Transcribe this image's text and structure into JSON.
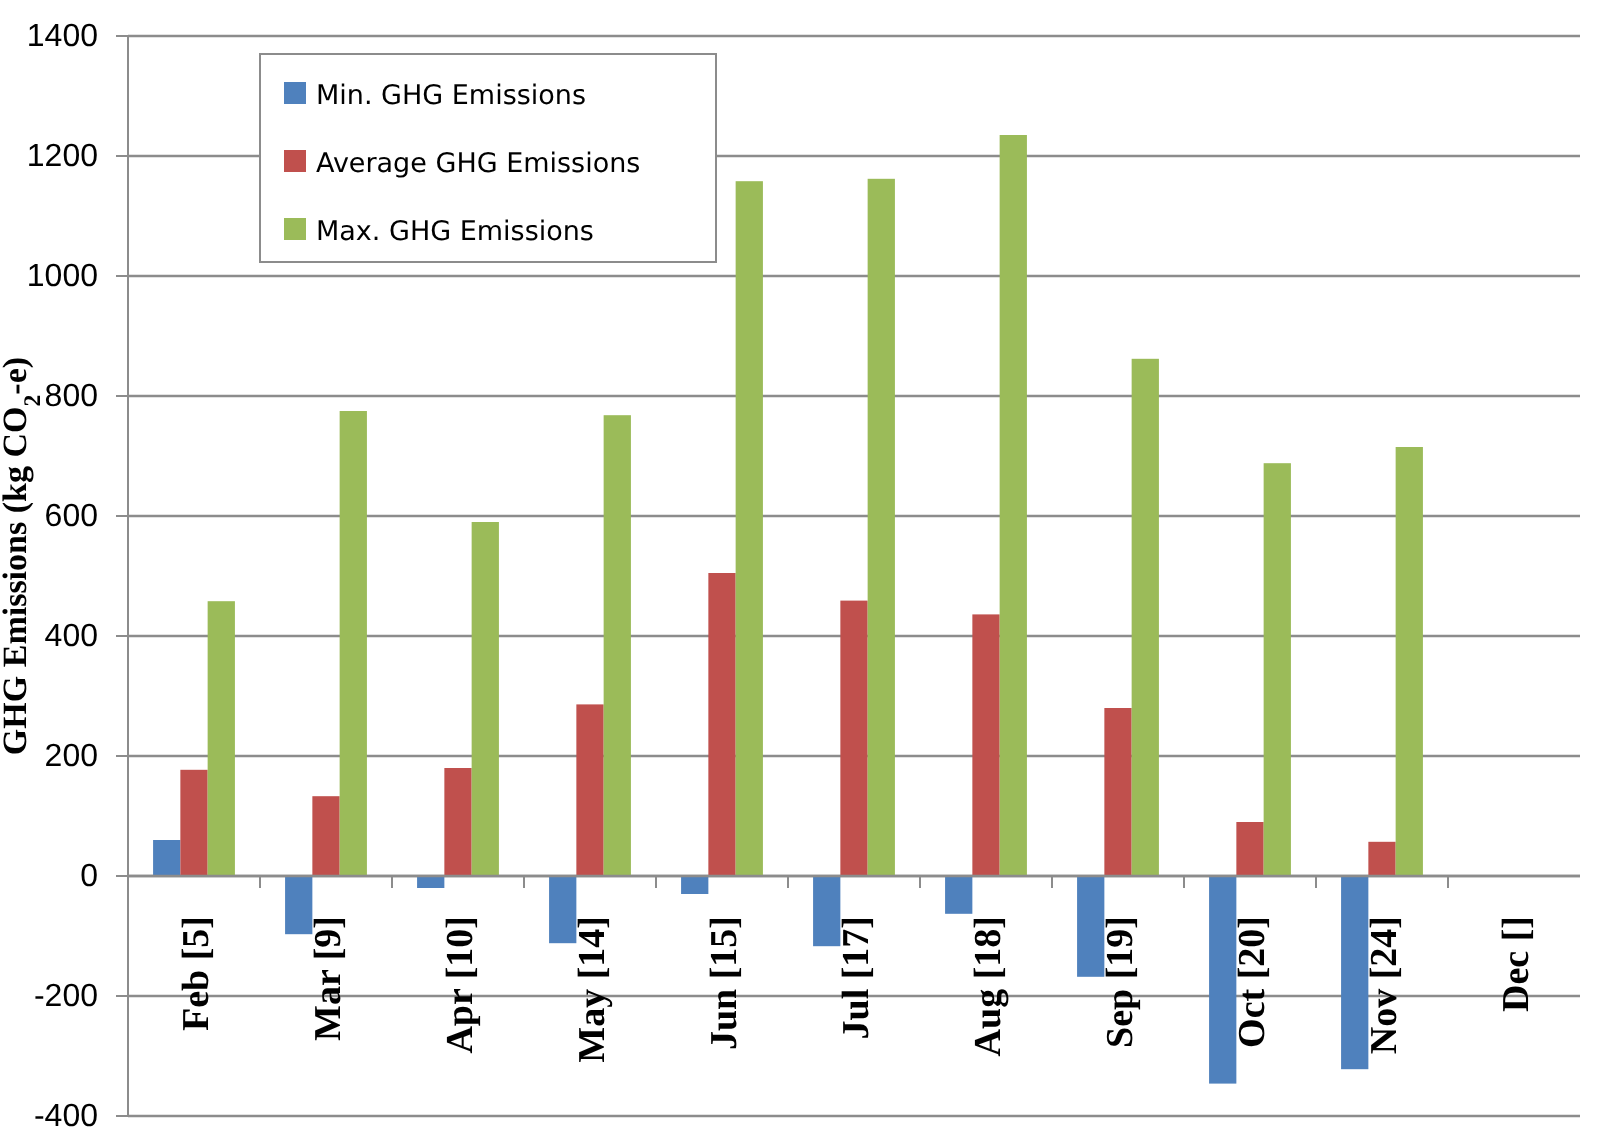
{
  "chart_data": {
    "type": "bar",
    "ylabel": "GHG Emissions (kg CO$_{2}$-e)",
    "categories": [
      "Feb [5]",
      "Mar [9]",
      "Apr [10]",
      "May [14]",
      "Jun [15]",
      "Jul [17]",
      "Aug [18]",
      "Sep [19]",
      "Oct [20]",
      "Nov [24]",
      "Dec []"
    ],
    "series": [
      {
        "name": "Min. GHG Emissions",
        "color": "#4f81bd",
        "values": [
          60,
          -97,
          -20,
          -112,
          -30,
          -117,
          -63,
          -168,
          -346,
          -322,
          null
        ]
      },
      {
        "name": "Average GHG Emissions",
        "color": "#c0504d",
        "values": [
          177,
          133,
          180,
          286,
          505,
          459,
          436,
          280,
          90,
          57,
          null
        ]
      },
      {
        "name": "Max. GHG Emissions",
        "color": "#9bbb59",
        "values": [
          458,
          775,
          590,
          768,
          1158,
          1162,
          1235,
          862,
          688,
          715,
          null
        ]
      }
    ],
    "ylim": [
      -400,
      1400
    ],
    "yticks": [
      -400,
      -200,
      0,
      200,
      400,
      600,
      800,
      1000,
      1200,
      1400
    ],
    "grid": "y",
    "legend": "top left"
  }
}
